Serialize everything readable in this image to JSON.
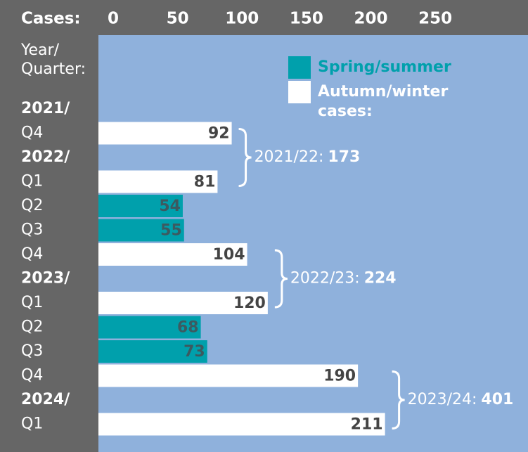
{
  "chart_data": {
    "type": "barh",
    "xlabel": "Cases:",
    "ylabel": [
      "Year/",
      "Quarter:"
    ],
    "categories": [
      "2021/",
      "Q4",
      "2022/",
      "Q1",
      "Q2",
      "Q3",
      "Q4",
      "2023/",
      "Q1",
      "Q2",
      "Q3",
      "Q4",
      "2024/",
      "Q1"
    ],
    "series": [
      {
        "name": "Spring/summer",
        "color": "#00a0ac",
        "values": [
          null,
          null,
          null,
          null,
          54,
          55,
          null,
          null,
          null,
          68,
          73,
          null,
          null,
          null
        ]
      },
      {
        "name": "Autumn/winter cases:",
        "color": "#ffffff",
        "values": [
          null,
          92,
          null,
          81,
          null,
          null,
          104,
          null,
          120,
          null,
          null,
          190,
          null,
          211
        ]
      }
    ],
    "xlim": [
      0,
      322
    ],
    "xticks": [
      0,
      50,
      100,
      150,
      200,
      250
    ],
    "annotations": [
      {
        "label": "2021/22:",
        "value": 173
      },
      {
        "label": "2022/23:",
        "value": 224
      },
      {
        "label": "2023/24:",
        "value": 401
      }
    ]
  }
}
